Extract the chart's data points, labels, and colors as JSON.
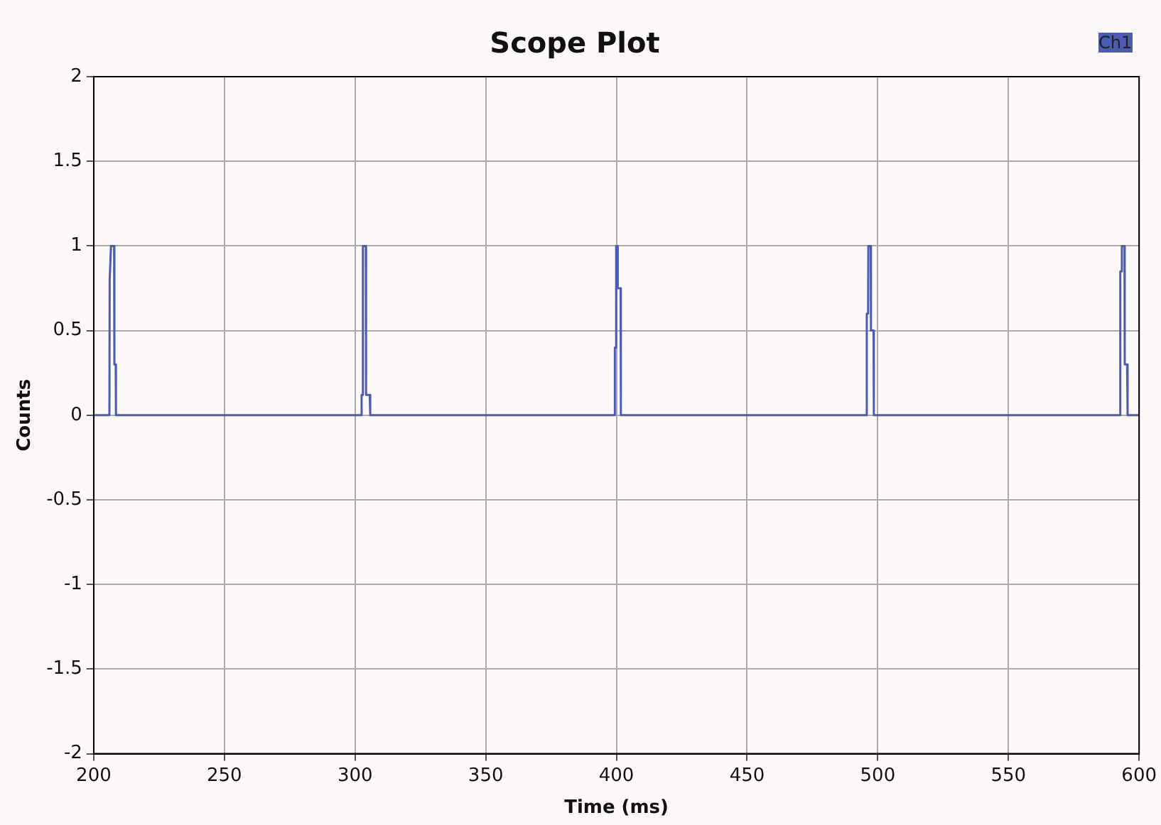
{
  "chart_data": {
    "type": "line",
    "title": "Scope Plot",
    "xlabel": "Time (ms)",
    "ylabel": "Counts",
    "xlim": [
      200,
      600
    ],
    "xticks": [
      200,
      250,
      300,
      350,
      400,
      450,
      500,
      550,
      600
    ],
    "ylim": [
      -2,
      2
    ],
    "yticks": [
      -2,
      -1.5,
      -1,
      -0.5,
      0,
      0.5,
      1,
      1.5,
      2
    ],
    "grid": true,
    "legend": "top right",
    "marker": "none",
    "series": [
      {
        "name": "Ch1",
        "color": "#4c5cb0",
        "x": [
          200,
          206,
          206.1,
          206.6,
          207.8,
          207.9,
          208.4,
          208.5,
          302.4,
          302.5,
          302.9,
          303.0,
          304.1,
          304.2,
          305.6,
          305.8,
          399.3,
          399.4,
          399.8,
          399.9,
          400.4,
          400.5,
          401.6,
          401.7,
          495.7,
          495.8,
          496.3,
          496.4,
          497.3,
          497.4,
          498.4,
          498.5,
          592.7,
          592.8,
          593.3,
          593.4,
          594.4,
          594.5,
          595.4,
          595.6,
          600
        ],
        "values": [
          0,
          0,
          0.8,
          1,
          1,
          0.3,
          0.3,
          0,
          0,
          0.12,
          0.12,
          1,
          1,
          0.12,
          0.12,
          0,
          0,
          0.4,
          0.4,
          1,
          1,
          0.75,
          0.75,
          0,
          0,
          0.6,
          0.6,
          1,
          1,
          0.5,
          0.5,
          0,
          0,
          0.85,
          0.85,
          1,
          1,
          0.3,
          0.3,
          0,
          0
        ]
      }
    ]
  }
}
